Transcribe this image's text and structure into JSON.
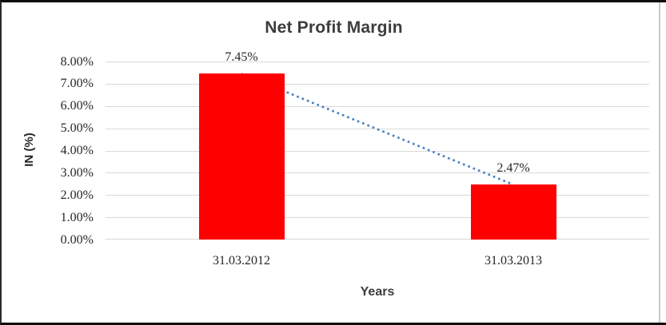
{
  "chart_data": {
    "type": "bar",
    "title": "Net Profit Margin",
    "categories": [
      "31.03.2012",
      "31.03.2013"
    ],
    "series": [
      {
        "name": "Net Profit Margin",
        "values": [
          7.45,
          2.47
        ]
      }
    ],
    "data_labels": [
      "7.45%",
      "2.47%"
    ],
    "xlabel": "Years",
    "ylabel": "IN (%)",
    "ylim": [
      0,
      8
    ],
    "y_ticks": [
      "0.00%",
      "1.00%",
      "2.00%",
      "3.00%",
      "4.00%",
      "5.00%",
      "6.00%",
      "7.00%",
      "8.00%"
    ],
    "grid": "horizontal",
    "legend_position": "none",
    "colors": {
      "bar_fill": "#ff0000",
      "trendline": "#4a82c4",
      "gridline": "#d9d9d9",
      "title_text": "#3d3d3d",
      "axis_text": "#262626"
    },
    "trendline": {
      "kind": "linear",
      "style": "dotted"
    }
  }
}
